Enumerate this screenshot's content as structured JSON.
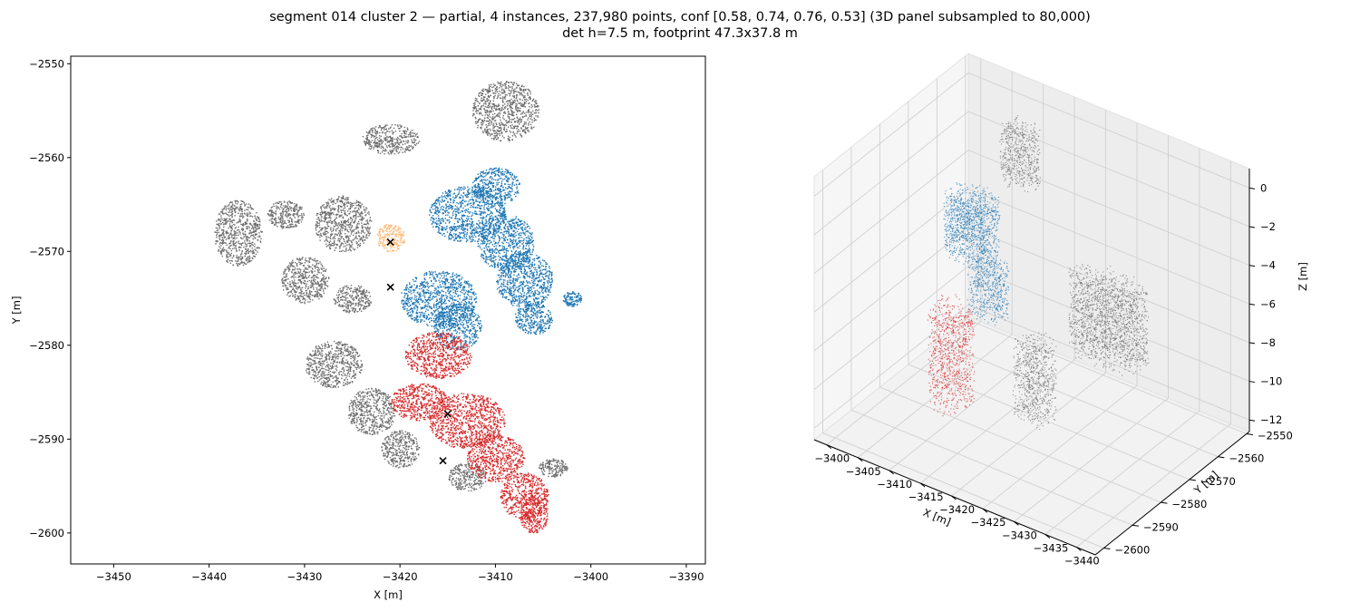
{
  "figure": {
    "title_line1": "segment 014 cluster 2 — partial, 4 instances, 237,980 points, conf [0.58, 0.74, 0.76, 0.53] (3D panel subsampled to 80,000)",
    "title_line2": "det h=7.5 m, footprint 47.3x37.8 m"
  },
  "colors": {
    "instance_blue": "#1f77b4",
    "instance_red": "#d62728",
    "instance_orange": "#ffbb78",
    "background_points": "#6e6e6e",
    "marker": "#000000"
  },
  "chart_data": [
    {
      "type": "scatter",
      "panel": "2D top view",
      "xlabel": "X [m]",
      "ylabel": "Y [m]",
      "xlim": [
        -3454.5,
        -3388.0
      ],
      "ylim": [
        -2603.3,
        -2549.2
      ],
      "xticks": [
        -3450,
        -3440,
        -3430,
        -3420,
        -3410,
        -3400,
        -3390
      ],
      "yticks": [
        -2550,
        -2560,
        -2570,
        -2580,
        -2590,
        -2600
      ],
      "grid": false,
      "series": [
        {
          "color": "#6e6e6e",
          "clusters": [
            {
              "x": -3409,
              "y": -2555,
              "rx": 3.5,
              "ry": 3.2
            },
            {
              "x": -3421,
              "y": -2558,
              "rx": 3.0,
              "ry": 1.6
            },
            {
              "x": -3437,
              "y": -2568,
              "rx": 2.5,
              "ry": 3.5
            },
            {
              "x": -3426,
              "y": -2567,
              "rx": 3.0,
              "ry": 3.0
            },
            {
              "x": -3432,
              "y": -2566,
              "rx": 2.0,
              "ry": 1.5
            },
            {
              "x": -3430,
              "y": -2573,
              "rx": 2.5,
              "ry": 2.5
            },
            {
              "x": -3425,
              "y": -2575,
              "rx": 2.0,
              "ry": 1.5
            },
            {
              "x": -3427,
              "y": -2582,
              "rx": 3.0,
              "ry": 2.5
            },
            {
              "x": -3423,
              "y": -2587,
              "rx": 2.5,
              "ry": 2.5
            },
            {
              "x": -3420,
              "y": -2591,
              "rx": 2.0,
              "ry": 2.0
            },
            {
              "x": -3413,
              "y": -2594,
              "rx": 2.0,
              "ry": 1.5
            },
            {
              "x": -3404,
              "y": -2593,
              "rx": 1.5,
              "ry": 1.0
            }
          ]
        },
        {
          "color": "#1f77b4",
          "clusters": [
            {
              "x": -3410,
              "y": -2563,
              "rx": 2.5,
              "ry": 2.0
            },
            {
              "x": -3413,
              "y": -2566,
              "rx": 4.0,
              "ry": 3.0
            },
            {
              "x": -3409,
              "y": -2569,
              "rx": 3.0,
              "ry": 3.0
            },
            {
              "x": -3407,
              "y": -2573,
              "rx": 3.0,
              "ry": 3.0
            },
            {
              "x": -3406,
              "y": -2577,
              "rx": 2.0,
              "ry": 1.8
            },
            {
              "x": -3416,
              "y": -2575,
              "rx": 4.0,
              "ry": 3.0
            },
            {
              "x": -3414,
              "y": -2578,
              "rx": 2.5,
              "ry": 2.5
            },
            {
              "x": -3402,
              "y": -2575,
              "rx": 1.0,
              "ry": 0.8
            }
          ]
        },
        {
          "color": "#d62728",
          "clusters": [
            {
              "x": -3416,
              "y": -2581,
              "rx": 3.5,
              "ry": 2.5
            },
            {
              "x": -3418,
              "y": -2586,
              "rx": 3.0,
              "ry": 2.0
            },
            {
              "x": -3413,
              "y": -2588,
              "rx": 4.0,
              "ry": 3.0
            },
            {
              "x": -3410,
              "y": -2592,
              "rx": 3.0,
              "ry": 2.5
            },
            {
              "x": -3407,
              "y": -2596,
              "rx": 2.5,
              "ry": 2.5
            },
            {
              "x": -3406,
              "y": -2598,
              "rx": 1.5,
              "ry": 2.0
            }
          ]
        },
        {
          "color": "#ffbb78",
          "clusters": [
            {
              "x": -3421,
              "y": -2568.5,
              "rx": 1.5,
              "ry": 1.5
            }
          ]
        }
      ],
      "markers": [
        {
          "x": -3421,
          "y": -2569
        },
        {
          "x": -3421,
          "y": -2573.8
        },
        {
          "x": -3415,
          "y": -2587.3
        },
        {
          "x": -3415.5,
          "y": -2592.3
        }
      ]
    },
    {
      "type": "scatter",
      "panel": "3D view",
      "xlabel": "X [m]",
      "ylabel": "Y [m]",
      "zlabel": "Z [m]",
      "xlim": [
        -3443,
        -3398
      ],
      "ylim": [
        -2603,
        -2549
      ],
      "zlim": [
        -12.6,
        1.0
      ],
      "xticks": [
        -3440,
        -3435,
        -3430,
        -3425,
        -3420,
        -3415,
        -3410,
        -3405,
        -3400
      ],
      "yticks": [
        -2550,
        -2560,
        -2570,
        -2580,
        -2590,
        -2600
      ],
      "zticks": [
        0,
        -2,
        -4,
        -6,
        -8,
        -10,
        -12
      ],
      "grid": true,
      "series": [
        {
          "color": "#6e6e6e",
          "clusters": [
            {
              "x": -3409,
              "y": -2555,
              "z": -2,
              "rx": 3,
              "ry": 3,
              "rz": 1.5
            },
            {
              "x": -3430,
              "y": -2570,
              "z": -6,
              "rx": 6,
              "ry": 5,
              "rz": 2
            },
            {
              "x": -3425,
              "y": -2585,
              "z": -8,
              "rx": 3,
              "ry": 4,
              "rz": 2
            }
          ]
        },
        {
          "color": "#1f77b4",
          "clusters": [
            {
              "x": -3408,
              "y": -2570,
              "z": -4,
              "rx": 4,
              "ry": 5,
              "rz": 1.5
            },
            {
              "x": -3413,
              "y": -2575,
              "z": -6,
              "rx": 3,
              "ry": 3,
              "rz": 1.5
            }
          ]
        },
        {
          "color": "#d62728",
          "clusters": [
            {
              "x": -3413,
              "y": -2588,
              "z": -8,
              "rx": 3,
              "ry": 5,
              "rz": 2.5
            }
          ]
        }
      ]
    }
  ]
}
